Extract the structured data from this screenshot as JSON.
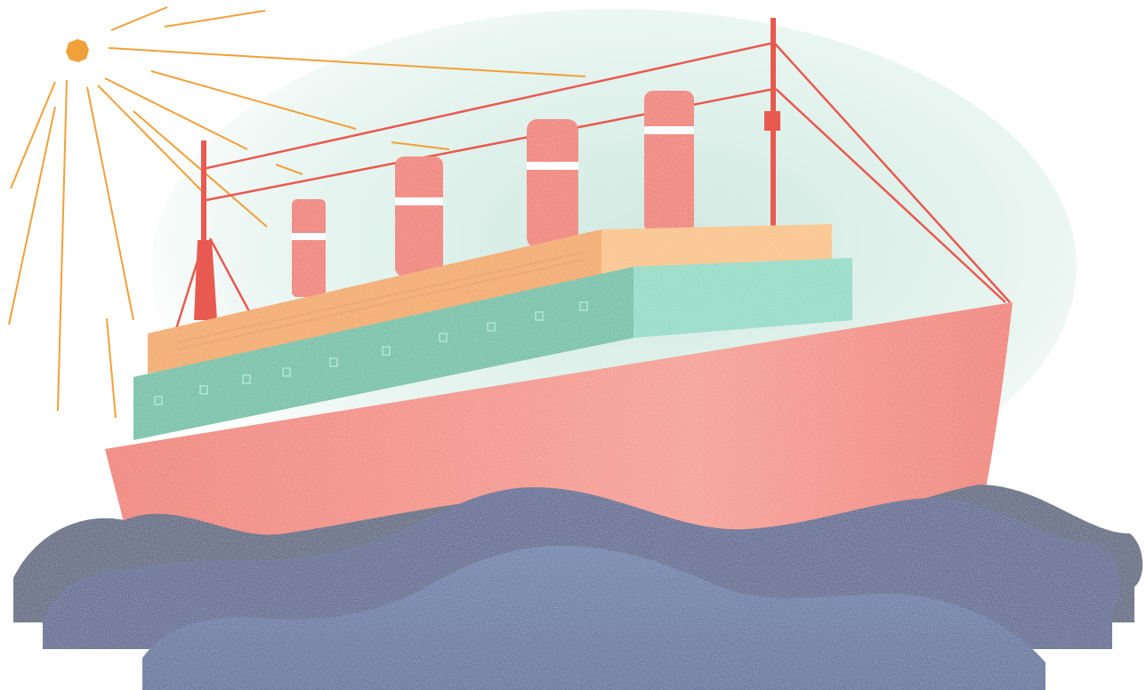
{
  "illustration": {
    "subject": "ship-on-waves",
    "palette": {
      "sun": "#F2A03A",
      "hull": "#EE6556",
      "hull_highlight": "#F48E80",
      "upper_deck": "#F19B38",
      "upper_deck_light": "#F9BB70",
      "lower_deck": "#4DB899",
      "lower_deck_light": "#7FD7BE",
      "funnel": "#EE6556",
      "mast": "#E85A50",
      "wave_dark": "#1F3A66",
      "wave_mid": "#263F7E",
      "wave_light": "#3F5F9A",
      "haze": "#A8D8C8"
    }
  }
}
